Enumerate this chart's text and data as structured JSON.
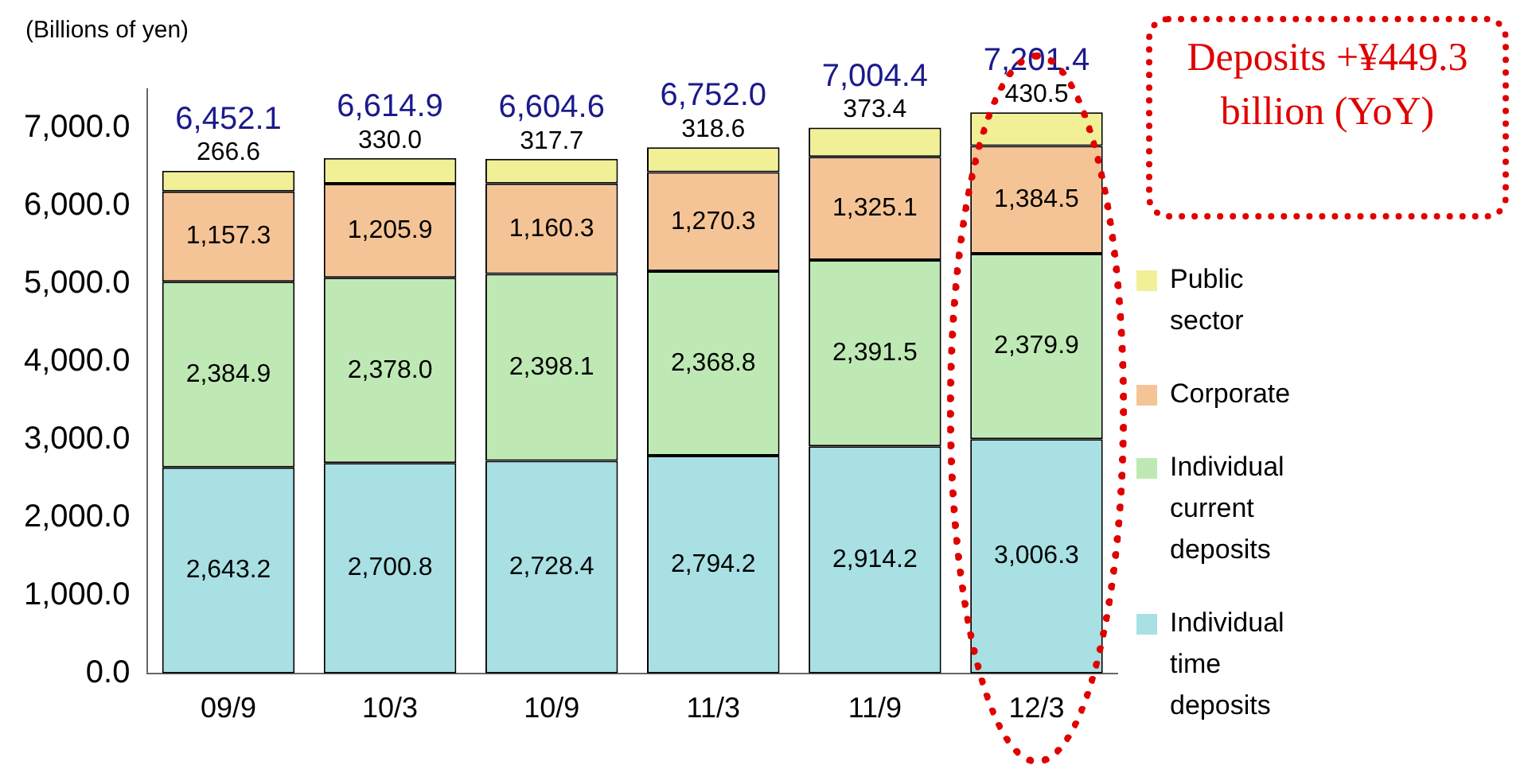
{
  "chart_data": {
    "type": "bar",
    "stacked": true,
    "ylabel": "(Billions of yen)",
    "categories": [
      "09/9",
      "10/3",
      "10/9",
      "11/3",
      "11/9",
      "12/3"
    ],
    "series": [
      {
        "name": "Individual time deposits",
        "color": "#a8e0e4",
        "values": [
          2643.2,
          2700.8,
          2728.4,
          2794.2,
          2914.2,
          3006.3
        ],
        "value_labels": [
          "2,643.2",
          "2,700.8",
          "2,728.4",
          "2,794.2",
          "2,914.2",
          "3,006.3"
        ]
      },
      {
        "name": "Individual current deposits",
        "color": "#bfe9b4",
        "values": [
          2384.9,
          2378.0,
          2398.1,
          2368.8,
          2391.5,
          2379.9
        ],
        "value_labels": [
          "2,384.9",
          "2,378.0",
          "2,398.1",
          "2,368.8",
          "2,391.5",
          "2,379.9"
        ]
      },
      {
        "name": "Corporate",
        "color": "#f5c496",
        "values": [
          1157.3,
          1205.9,
          1160.3,
          1270.3,
          1325.1,
          1384.5
        ],
        "value_labels": [
          "1,157.3",
          "1,205.9",
          "1,160.3",
          "1,270.3",
          "1,325.1",
          "1,384.5"
        ]
      },
      {
        "name": "Public sector",
        "color": "#f2f096",
        "values": [
          266.6,
          330.0,
          317.7,
          318.6,
          373.4,
          430.5
        ],
        "value_labels": [
          "266.6",
          "330.0",
          "317.7",
          "318.6",
          "373.4",
          "430.5"
        ]
      }
    ],
    "totals": [
      "6,452.1",
      "6,614.9",
      "6,604.6",
      "6,752.0",
      "7,004.4",
      "7,201.4"
    ],
    "ylim": [
      0,
      7500
    ],
    "yticks": [
      {
        "value": 0,
        "label": "0.0"
      },
      {
        "value": 1000,
        "label": "1,000.0"
      },
      {
        "value": 2000,
        "label": "2,000.0"
      },
      {
        "value": 3000,
        "label": "3,000.0"
      },
      {
        "value": 4000,
        "label": "4,000.0"
      },
      {
        "value": 5000,
        "label": "5,000.0"
      },
      {
        "value": 6000,
        "label": "6,000.0"
      },
      {
        "value": 7000,
        "label": "7,000.0"
      }
    ],
    "grid": false,
    "legend": "right",
    "annotations": [
      "Deposits +¥449.3 billion (YoY)"
    ]
  }
}
